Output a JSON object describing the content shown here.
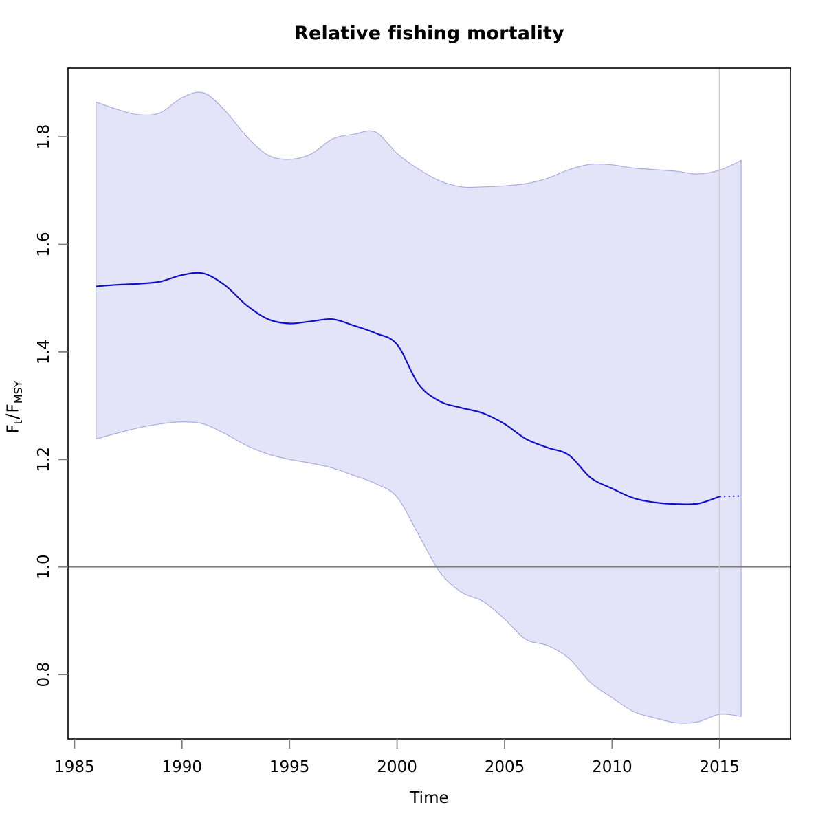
{
  "figure": {
    "title": "Relative fishing mortality",
    "xlabel": "Time",
    "ylabel_parts": {
      "base1": "F",
      "sub1": "t",
      "divider": "/",
      "base2": "F",
      "sub2": "MSY"
    }
  },
  "chart_data": {
    "type": "line",
    "title": "Relative fishing mortality",
    "xlabel": "Time",
    "ylabel": "Ft/FMSY",
    "x": [
      1986,
      1987,
      1988,
      1989,
      1990,
      1991,
      1992,
      1993,
      1994,
      1995,
      1996,
      1997,
      1998,
      1999,
      2000,
      2001,
      2002,
      2003,
      2004,
      2005,
      2006,
      2007,
      2008,
      2009,
      2010,
      2011,
      2012,
      2013,
      2014,
      2015,
      2016
    ],
    "series": [
      {
        "name": "median_F_over_Fmsy",
        "style": "solid, dotted after prediction start",
        "values": [
          1.522,
          1.525,
          1.527,
          1.531,
          1.543,
          1.546,
          1.524,
          1.487,
          1.461,
          1.453,
          1.457,
          1.461,
          1.449,
          1.435,
          1.414,
          1.34,
          1.308,
          1.296,
          1.286,
          1.266,
          1.238,
          1.222,
          1.208,
          1.166,
          1.146,
          1.128,
          1.12,
          1.117,
          1.118,
          1.131,
          1.132
        ]
      },
      {
        "name": "upper_95_ci",
        "style": "band edge",
        "values": [
          1.865,
          1.851,
          1.841,
          1.845,
          1.873,
          1.882,
          1.849,
          1.801,
          1.766,
          1.758,
          1.768,
          1.796,
          1.805,
          1.809,
          1.769,
          1.74,
          1.718,
          1.707,
          1.707,
          1.709,
          1.713,
          1.723,
          1.739,
          1.749,
          1.748,
          1.742,
          1.739,
          1.736,
          1.731,
          1.738,
          1.756
        ]
      },
      {
        "name": "lower_95_ci",
        "style": "band edge",
        "values": [
          1.238,
          1.249,
          1.259,
          1.266,
          1.27,
          1.266,
          1.248,
          1.226,
          1.21,
          1.2,
          1.193,
          1.184,
          1.17,
          1.155,
          1.13,
          1.06,
          0.99,
          0.953,
          0.936,
          0.903,
          0.865,
          0.854,
          0.83,
          0.785,
          0.757,
          0.731,
          0.719,
          0.71,
          0.712,
          0.726,
          0.722
        ]
      }
    ],
    "x_ticks": [
      1985,
      1990,
      1995,
      2000,
      2005,
      2010,
      2015
    ],
    "x_tick_labels": [
      "1985",
      "1990",
      "1995",
      "2000",
      "2005",
      "2010",
      "2015"
    ],
    "y_ticks": [
      0.8,
      1.0,
      1.2,
      1.4,
      1.6,
      1.8
    ],
    "y_tick_labels": [
      "0.8",
      "1.0",
      "1.2",
      "1.4",
      "1.6",
      "1.8"
    ],
    "xlim": [
      1984.7,
      2018.3
    ],
    "ylim": [
      0.68,
      1.928
    ],
    "grid": false,
    "legend": "none",
    "reference_line_y": 1.0,
    "vertical_marker_x": 2015,
    "prediction_start_x": 2015,
    "colors": {
      "median_line": "#0f0fcc",
      "band_fill": "#e4e4f9",
      "band_edge": "#aaaae2",
      "reference_line": "#808080",
      "vertical_marker": "#c9c9c9",
      "axis_box": "#000000",
      "tick_mark": "#7f7f7f",
      "tick_text": "#000000"
    }
  }
}
